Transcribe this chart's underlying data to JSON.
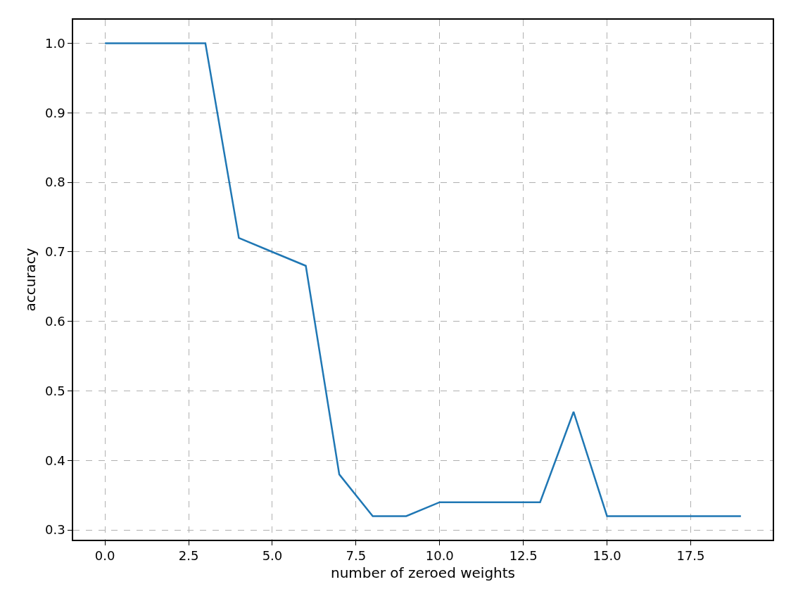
{
  "chart_data": {
    "type": "line",
    "xlabel": "number of zeroed weights",
    "ylabel": "accuracy",
    "x": [
      0,
      1,
      2,
      3,
      4,
      5,
      6,
      7,
      8,
      9,
      10,
      11,
      12,
      13,
      14,
      15,
      16,
      17,
      18,
      19
    ],
    "series": [
      {
        "color": "#1f77b4",
        "values": [
          1.0,
          1.0,
          1.0,
          1.0,
          0.72,
          0.7,
          0.68,
          0.38,
          0.32,
          0.32,
          0.34,
          0.34,
          0.34,
          0.34,
          0.47,
          0.32,
          0.32,
          0.32,
          0.32,
          0.32
        ]
      }
    ],
    "xlim": [
      -0.95,
      19.95
    ],
    "xticks": [
      {
        "value": 0,
        "label": "0.0"
      },
      {
        "value": 2.5,
        "label": "2.5"
      },
      {
        "value": 5,
        "label": "5.0"
      },
      {
        "value": 7.5,
        "label": "7.5"
      },
      {
        "value": 10,
        "label": "10.0"
      },
      {
        "value": 12.5,
        "label": "12.5"
      },
      {
        "value": 15,
        "label": "15.0"
      },
      {
        "value": 17.5,
        "label": "17.5"
      }
    ],
    "ylim": [
      0.286,
      1.034
    ],
    "yticks": [
      {
        "value": 0.3,
        "label": "0.3"
      },
      {
        "value": 0.4,
        "label": "0.4"
      },
      {
        "value": 0.5,
        "label": "0.5"
      },
      {
        "value": 0.6,
        "label": "0.6"
      },
      {
        "value": 0.7,
        "label": "0.7"
      },
      {
        "value": 0.8,
        "label": "0.8"
      },
      {
        "value": 0.9,
        "label": "0.9"
      },
      {
        "value": 1.0,
        "label": "1.0"
      }
    ],
    "grid": true,
    "marker": "none",
    "line_style": "solid"
  }
}
